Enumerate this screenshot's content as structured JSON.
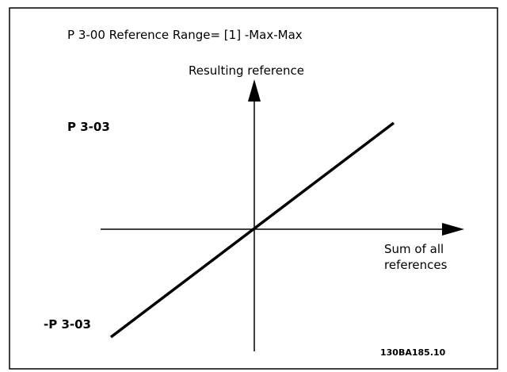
{
  "title": "P 3-00 Reference Range= [1] -Max-Max",
  "y_axis_label": "Resulting reference",
  "x_axis_label": [
    "Sum of all",
    "references"
  ],
  "max_label": "P 3-03",
  "min_label": "-P 3-03",
  "figure_id": "130BA185.10"
}
